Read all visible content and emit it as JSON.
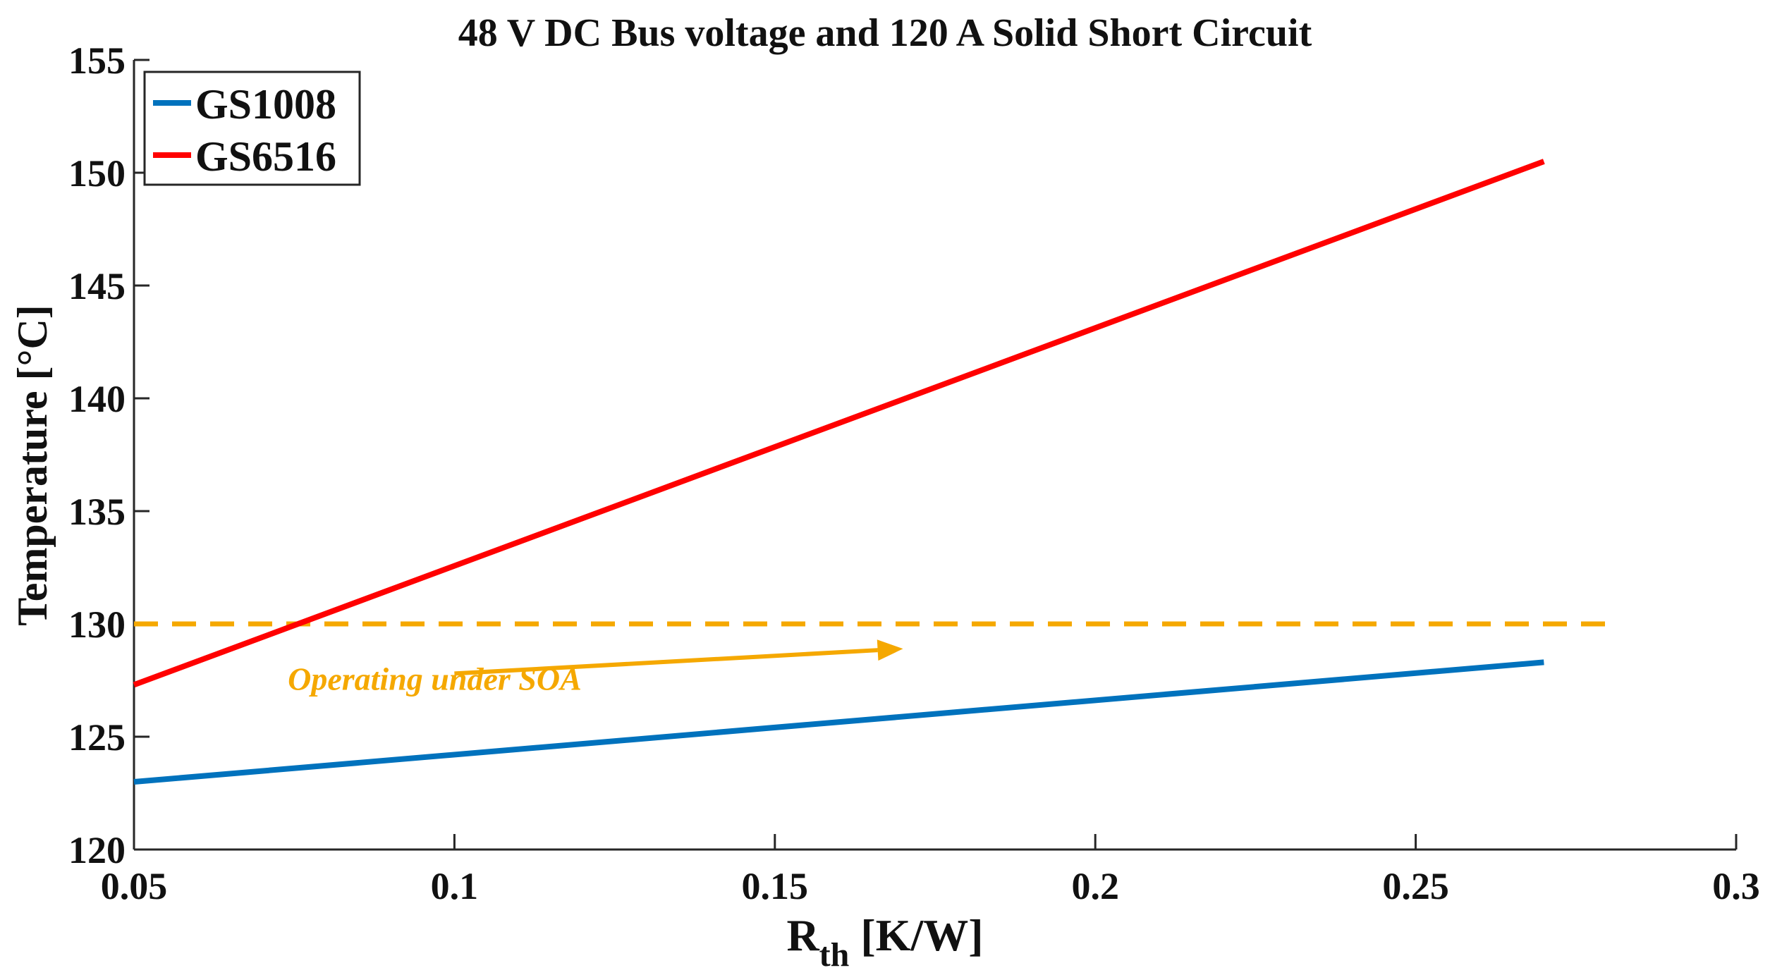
{
  "chart_data": {
    "type": "line",
    "title": "48 V DC Bus voltage and 120 A Solid Short Circuit",
    "xlabel_main": "R",
    "xlabel_sub": "th",
    "xlabel_unit": " [K/W]",
    "ylabel": "Temperature [°C]",
    "xlim": [
      0.05,
      0.3
    ],
    "ylim": [
      120,
      155
    ],
    "xticks": [
      0.05,
      0.1,
      0.15,
      0.2,
      0.25,
      0.3
    ],
    "xtick_labels": [
      "0.05",
      "0.1",
      "0.15",
      "0.2",
      "0.25",
      "0.3"
    ],
    "yticks": [
      120,
      125,
      130,
      135,
      140,
      145,
      150,
      155
    ],
    "ytick_labels": [
      "120",
      "125",
      "130",
      "135",
      "140",
      "145",
      "150",
      "155"
    ],
    "grid": false,
    "legend_position": "top-left",
    "series": [
      {
        "name": "GS1008",
        "color": "#0072BD",
        "x": [
          0.05,
          0.27
        ],
        "y": [
          123.0,
          128.3
        ]
      },
      {
        "name": "GS6516",
        "color": "#FF0000",
        "x": [
          0.05,
          0.27
        ],
        "y": [
          127.3,
          150.5
        ]
      }
    ],
    "reference_line": {
      "y": 130,
      "x": [
        0.05,
        0.28
      ],
      "color": "#F5A800",
      "style": "dashed"
    },
    "annotation": {
      "text": "Operating under SOA",
      "color": "#F5A800",
      "text_x": 0.074,
      "text_y": 127.7,
      "arrow_from": [
        0.1,
        127.8
      ],
      "arrow_to": [
        0.17,
        128.9
      ]
    }
  }
}
